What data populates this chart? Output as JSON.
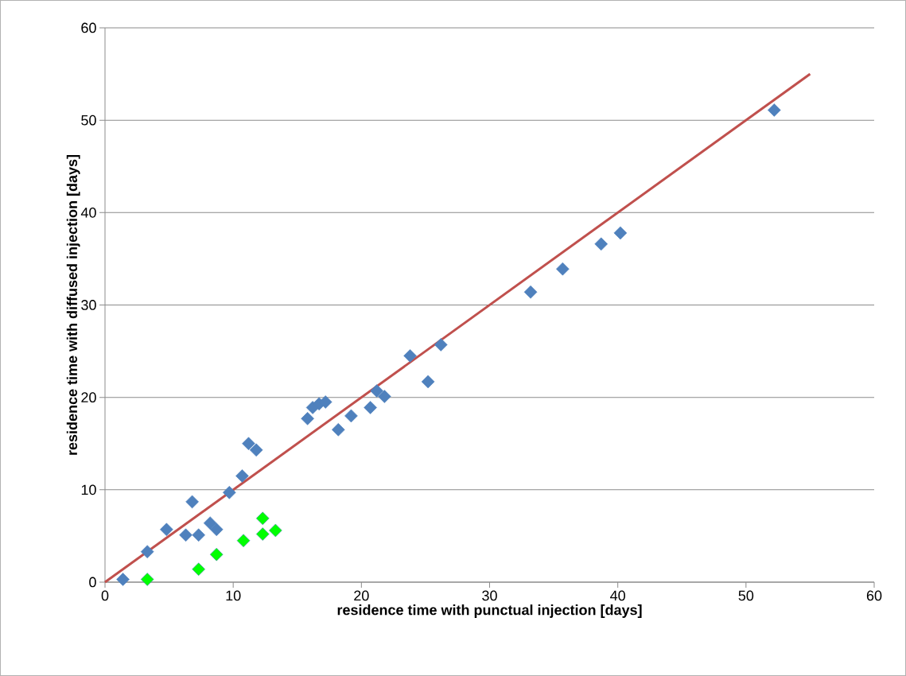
{
  "chart_data": {
    "type": "scatter",
    "xlabel": "residence time with punctual injection [days]",
    "ylabel": "residence time with diffused injection [days]",
    "xlim": [
      0,
      60
    ],
    "ylim": [
      0,
      60
    ],
    "xticks": [
      0,
      10,
      20,
      30,
      40,
      50,
      60
    ],
    "yticks": [
      0,
      10,
      20,
      30,
      40,
      50,
      60
    ],
    "grid": "y",
    "series": [
      {
        "color": "#4f81bd",
        "marker": "diamond",
        "x": [
          1.4,
          3.3,
          4.8,
          6.3,
          6.8,
          7.3,
          8.2,
          8.7,
          9.7,
          10.7,
          11.2,
          11.8,
          15.8,
          16.2,
          16.7,
          17.2,
          18.2,
          19.2,
          20.7,
          21.2,
          21.8,
          23.8,
          25.2,
          26.2,
          33.2,
          35.7,
          38.7,
          40.2,
          52.2
        ],
        "values": [
          0.3,
          3.3,
          5.7,
          5.1,
          8.7,
          5.1,
          6.4,
          5.7,
          9.7,
          11.5,
          15.0,
          14.3,
          17.7,
          18.9,
          19.3,
          19.5,
          16.5,
          18.0,
          18.9,
          20.7,
          20.1,
          24.5,
          21.7,
          25.7,
          31.4,
          33.9,
          36.6,
          37.8,
          51.1
        ]
      },
      {
        "color": "#00ff00",
        "marker": "diamond",
        "x": [
          3.3,
          7.3,
          8.7,
          10.8,
          12.3,
          12.3,
          13.3
        ],
        "values": [
          0.3,
          1.4,
          3.0,
          4.5,
          6.9,
          5.2,
          5.6
        ]
      },
      {
        "type": "line",
        "color": "#c0504d",
        "x": [
          0,
          55
        ],
        "values": [
          0,
          55
        ]
      }
    ]
  }
}
